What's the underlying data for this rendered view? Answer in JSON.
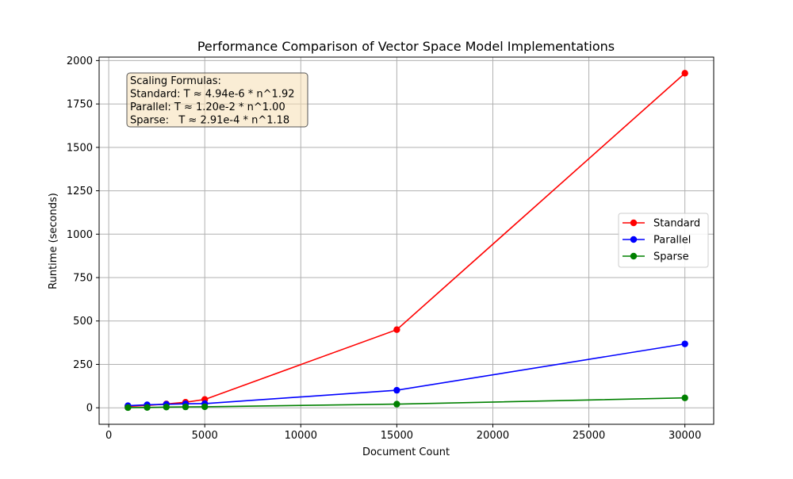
{
  "chart_data": {
    "type": "line",
    "title": "Performance Comparison of Vector Space Model Implementations",
    "xlabel": "Document Count",
    "ylabel": "Runtime (seconds)",
    "xlim": [
      -500,
      31500
    ],
    "ylim": [
      -95,
      2020
    ],
    "x_ticks": [
      0,
      5000,
      10000,
      15000,
      20000,
      25000,
      30000
    ],
    "y_ticks": [
      0,
      250,
      500,
      750,
      1000,
      1250,
      1500,
      1750,
      2000
    ],
    "grid": true,
    "legend_position": "center-right",
    "x": [
      1000,
      2000,
      3000,
      4000,
      5000,
      15000,
      30000
    ],
    "series": [
      {
        "name": "Standard",
        "color": "#ff0000",
        "values": [
          8,
          14,
          22,
          32,
          48,
          450,
          1927
        ]
      },
      {
        "name": "Parallel",
        "color": "#0000ff",
        "values": [
          12,
          17,
          20,
          23,
          24,
          101,
          368
        ]
      },
      {
        "name": "Sparse",
        "color": "#008000",
        "values": [
          1,
          2,
          4,
          5,
          6,
          21,
          57
        ]
      }
    ],
    "annotation": {
      "lines": [
        "Scaling Formulas:",
        "Standard: T ≈ 4.94e-6 * n^1.92",
        "Parallel: T ≈ 1.20e-2 * n^1.00",
        "Sparse:   T ≈ 2.91e-4 * n^1.18"
      ],
      "background": "#f5deb3"
    }
  }
}
